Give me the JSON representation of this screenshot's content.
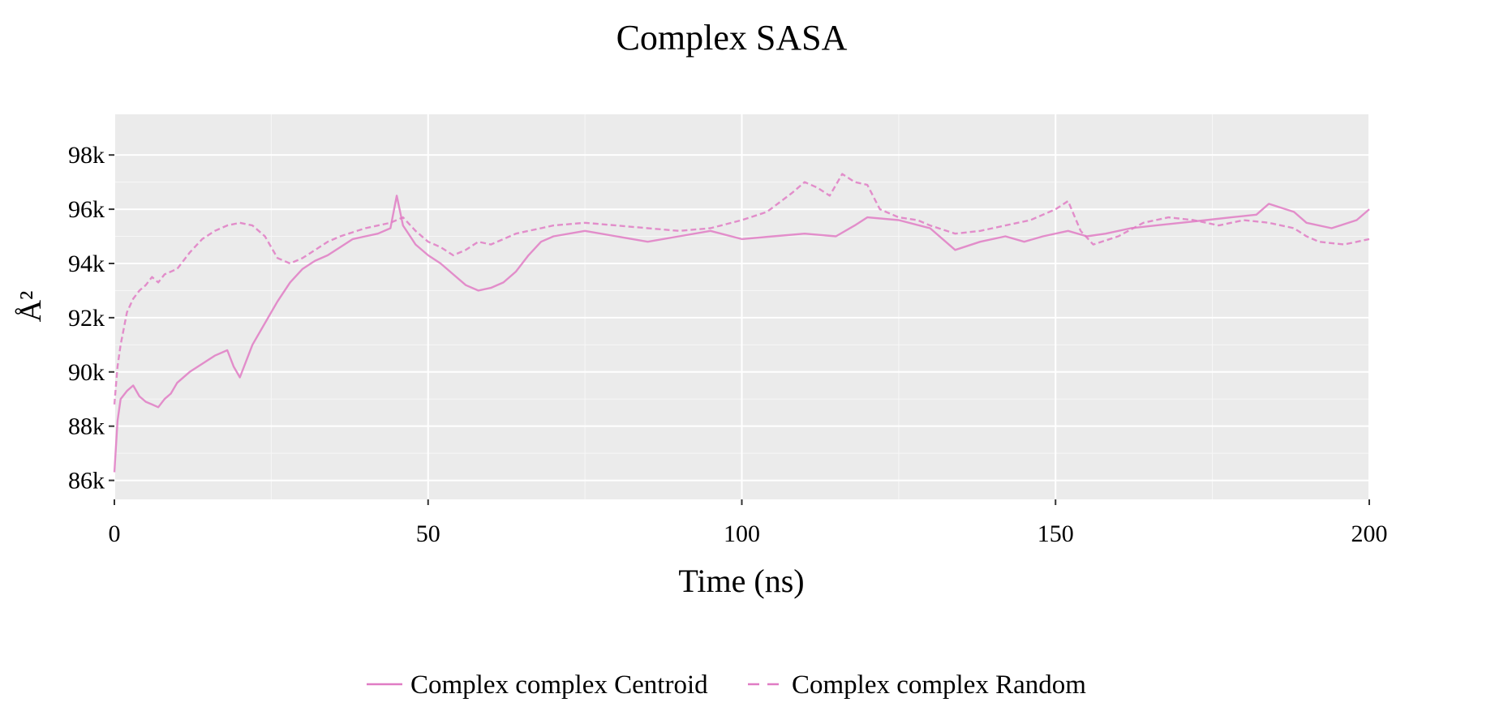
{
  "chart_data": {
    "type": "line",
    "title": "Complex SASA",
    "xlabel": "Time (ns)",
    "ylabel": "Å²",
    "xlim": [
      0,
      200
    ],
    "ylim": [
      85300,
      99500
    ],
    "x_ticks": [
      0,
      50,
      100,
      150,
      200
    ],
    "x_tick_labels": [
      "0",
      "50",
      "100",
      "150",
      "200"
    ],
    "y_ticks": [
      86000,
      88000,
      90000,
      92000,
      94000,
      96000,
      98000
    ],
    "y_tick_labels": [
      "86k",
      "88k",
      "90k",
      "92k",
      "94k",
      "96k",
      "98k"
    ],
    "grid": true,
    "legend_position": "bottom",
    "line_color": "#e07cc4",
    "series": [
      {
        "name": "Complex complex Centroid",
        "style": "solid",
        "x": [
          0,
          0.5,
          1,
          2,
          3,
          4,
          5,
          6,
          7,
          8,
          9,
          10,
          12,
          14,
          16,
          18,
          19,
          20,
          22,
          24,
          26,
          28,
          30,
          32,
          34,
          36,
          38,
          40,
          42,
          44,
          45,
          46,
          48,
          50,
          52,
          54,
          56,
          58,
          60,
          62,
          64,
          66,
          68,
          70,
          75,
          80,
          85,
          90,
          95,
          100,
          105,
          110,
          115,
          118,
          120,
          125,
          130,
          134,
          138,
          142,
          145,
          148,
          152,
          155,
          158,
          162,
          166,
          170,
          174,
          178,
          182,
          184,
          188,
          190,
          194,
          198,
          200
        ],
        "y": [
          86300,
          88200,
          89000,
          89300,
          89500,
          89100,
          88900,
          88800,
          88700,
          89000,
          89200,
          89600,
          90000,
          90300,
          90600,
          90800,
          90200,
          89800,
          91000,
          91800,
          92600,
          93300,
          93800,
          94100,
          94300,
          94600,
          94900,
          95000,
          95100,
          95300,
          96500,
          95400,
          94700,
          94300,
          94000,
          93600,
          93200,
          93000,
          93100,
          93300,
          93700,
          94300,
          94800,
          95000,
          95200,
          95000,
          94800,
          95000,
          95200,
          94900,
          95000,
          95100,
          95000,
          95400,
          95700,
          95600,
          95300,
          94500,
          94800,
          95000,
          94800,
          95000,
          95200,
          95000,
          95100,
          95300,
          95400,
          95500,
          95600,
          95700,
          95800,
          96200,
          95900,
          95500,
          95300,
          95600,
          96000
        ]
      },
      {
        "name": "Complex complex Random",
        "style": "dashed",
        "x": [
          0,
          0.5,
          1,
          2,
          3,
          4,
          5,
          6,
          7,
          8,
          10,
          12,
          14,
          16,
          18,
          20,
          22,
          24,
          26,
          28,
          30,
          32,
          34,
          36,
          40,
          44,
          46,
          48,
          50,
          52,
          54,
          56,
          58,
          60,
          62,
          64,
          66,
          68,
          70,
          75,
          80,
          85,
          90,
          95,
          100,
          104,
          108,
          110,
          112,
          114,
          116,
          118,
          120,
          122,
          125,
          128,
          130,
          134,
          138,
          142,
          146,
          150,
          152,
          154,
          156,
          160,
          164,
          168,
          172,
          176,
          180,
          184,
          188,
          190,
          192,
          196,
          200
        ],
        "y": [
          88800,
          90200,
          91000,
          92200,
          92700,
          93000,
          93200,
          93500,
          93300,
          93600,
          93800,
          94400,
          94900,
          95200,
          95400,
          95500,
          95400,
          95000,
          94200,
          94000,
          94200,
          94500,
          94800,
          95000,
          95300,
          95500,
          95700,
          95200,
          94800,
          94600,
          94300,
          94500,
          94800,
          94700,
          94900,
          95100,
          95200,
          95300,
          95400,
          95500,
          95400,
          95300,
          95200,
          95300,
          95600,
          95900,
          96600,
          97000,
          96800,
          96500,
          97300,
          97000,
          96900,
          96000,
          95700,
          95600,
          95400,
          95100,
          95200,
          95400,
          95600,
          96000,
          96300,
          95200,
          94700,
          95000,
          95500,
          95700,
          95600,
          95400,
          95600,
          95500,
          95300,
          95000,
          94800,
          94700,
          94900
        ]
      }
    ]
  }
}
